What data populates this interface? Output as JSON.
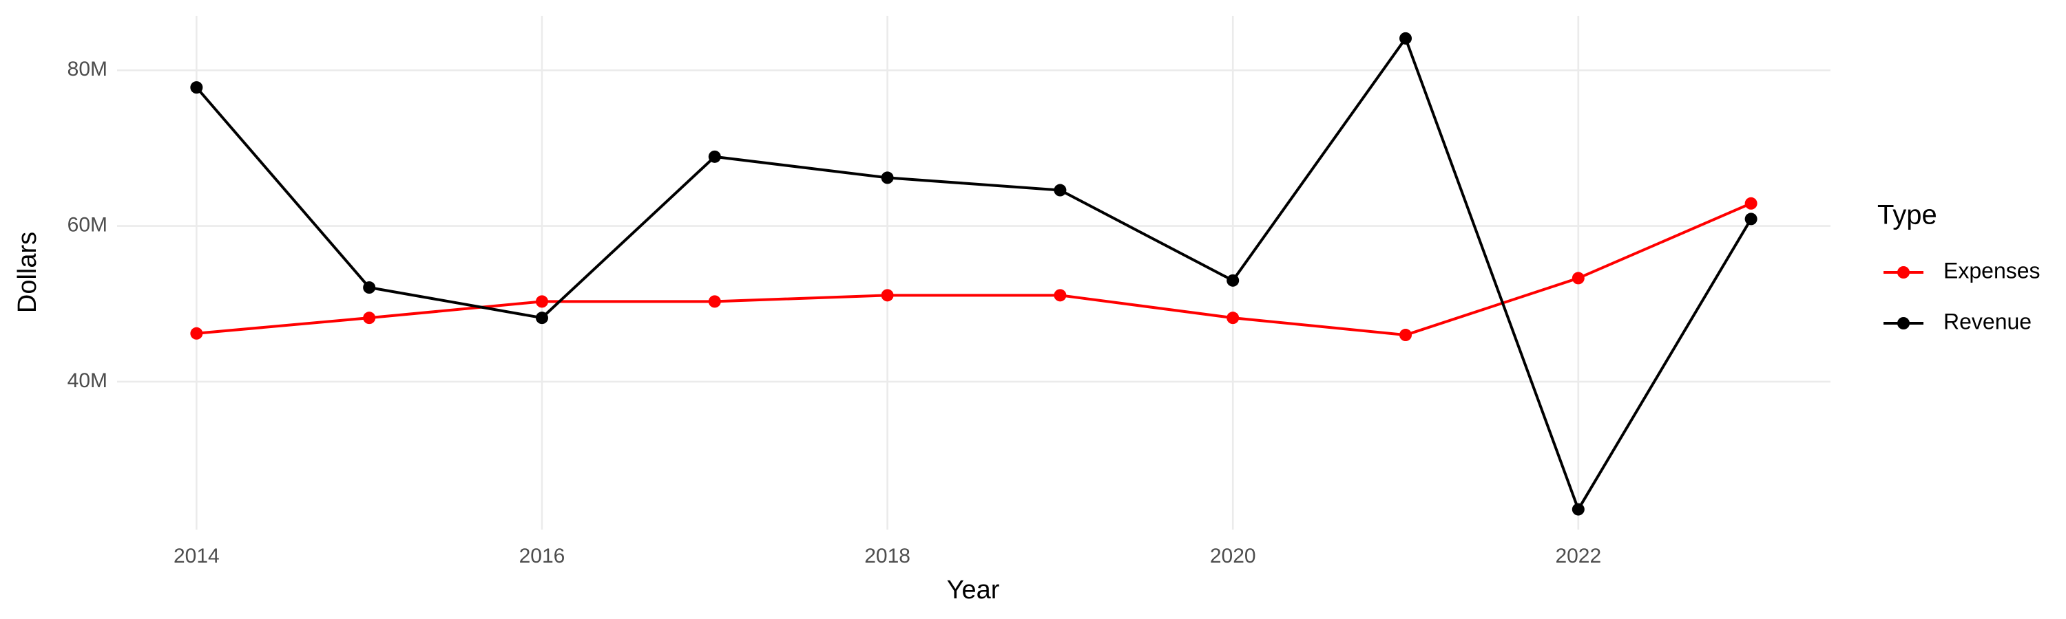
{
  "chart_data": {
    "type": "line",
    "x_label": "Year",
    "y_label": "Dollars",
    "legend_title": "Type",
    "x": [
      2014,
      2015,
      2016,
      2017,
      2018,
      2019,
      2020,
      2021,
      2022,
      2023
    ],
    "series": [
      {
        "name": "Expenses",
        "color": "#ff0000",
        "values": [
          46200000,
          48200000,
          50300000,
          50300000,
          51100000,
          51100000,
          48200000,
          46000000,
          53300000,
          62900000
        ]
      },
      {
        "name": "Revenue",
        "color": "#000000",
        "values": [
          77800000,
          52100000,
          48200000,
          68900000,
          66200000,
          64600000,
          53000000,
          84100000,
          23600000,
          60900000
        ]
      }
    ],
    "xlim": [
      2013.54,
      2023.46
    ],
    "xticks": [
      2014,
      2016,
      2018,
      2020,
      2022
    ],
    "ylim": [
      21000000,
      87000000
    ],
    "yticks": [
      {
        "value": 40000000,
        "label": "40M"
      },
      {
        "value": 60000000,
        "label": "60M"
      },
      {
        "value": 80000000,
        "label": "80M"
      }
    ],
    "grid": true,
    "legend": "right"
  }
}
